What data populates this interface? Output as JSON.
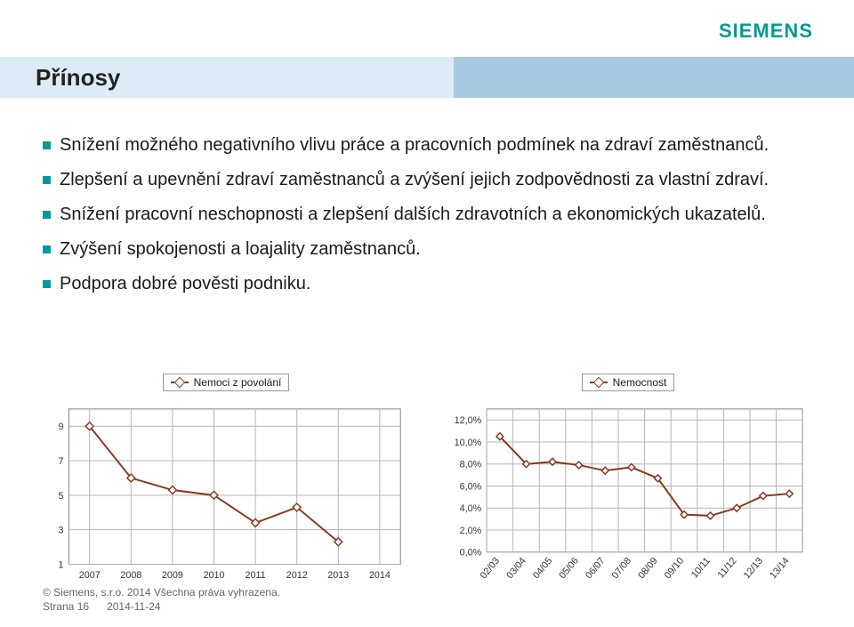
{
  "brand": {
    "logo_text": "SIEMENS",
    "logo_color": "#009999"
  },
  "header": {
    "title": "Přínosy",
    "band_left_bg": "#dcebf6",
    "band_right_bg": "#a6c9e2"
  },
  "bullets": [
    "Snížení možného negativního vlivu práce a pracovních podmínek na zdraví zaměstnanců.",
    "Zlepšení a upevnění zdraví zaměstnanců a zvýšení jejich zodpovědnosti za vlastní zdraví.",
    "Snížení pracovní neschopnosti a zlepšení dalších zdravotních a ekonomických ukazatelů.",
    "Zvýšení spokojenosti a loajality zaměstnanců.",
    "Podpora dobré pověsti podniku."
  ],
  "bullet_color": "#009999",
  "chart_left": {
    "type": "line",
    "legend": "Nemoci z povolání",
    "series_color": "#87391e",
    "marker_fill": "#ffffff",
    "x_labels": [
      "2007",
      "2008",
      "2009",
      "2010",
      "2011",
      "2012",
      "2013",
      "2014"
    ],
    "y_ticks": [
      1,
      3,
      5,
      7,
      9
    ],
    "ylim": [
      1,
      10
    ],
    "xlim": [
      2006.5,
      2014.5
    ],
    "values_x": [
      2007,
      2008,
      2009,
      2010,
      2011,
      2012,
      2013
    ],
    "values_y": [
      9.0,
      6.0,
      5.3,
      5.0,
      3.4,
      4.3,
      2.3
    ],
    "grid_color": "#b3b3b3",
    "plot_border_color": "#808080",
    "background": "#ffffff",
    "tick_fontsize": 11,
    "legend_fontsize": 12
  },
  "chart_right": {
    "type": "line",
    "legend": "Nemocnost",
    "series_color": "#87391e",
    "marker_fill": "#ffffff",
    "x_labels": [
      "02/03",
      "03/04",
      "04/05",
      "05/06",
      "06/07",
      "07/08",
      "08/09",
      "09/10",
      "10/11",
      "11/12",
      "12/13",
      "13/14"
    ],
    "y_tick_labels": [
      "0,0%",
      "2,0%",
      "4,0%",
      "6,0%",
      "8,0%",
      "10,0%",
      "12,0%"
    ],
    "y_tick_values": [
      0,
      2,
      4,
      6,
      8,
      10,
      12
    ],
    "ylim": [
      0,
      13
    ],
    "values_y": [
      10.5,
      8.0,
      8.2,
      7.9,
      7.4,
      7.7,
      6.7,
      3.4,
      3.3,
      4.0,
      5.1,
      5.3
    ],
    "grid_color": "#b3b3b3",
    "plot_border_color": "#808080",
    "background": "#ffffff",
    "tick_fontsize": 11,
    "legend_fontsize": 12,
    "x_label_rotation": -50
  },
  "footer": {
    "copyright": "© Siemens, s.r.o.  2014  Všechna práva vyhrazena.",
    "page": "Strana 16",
    "date": "2014-11-24"
  }
}
